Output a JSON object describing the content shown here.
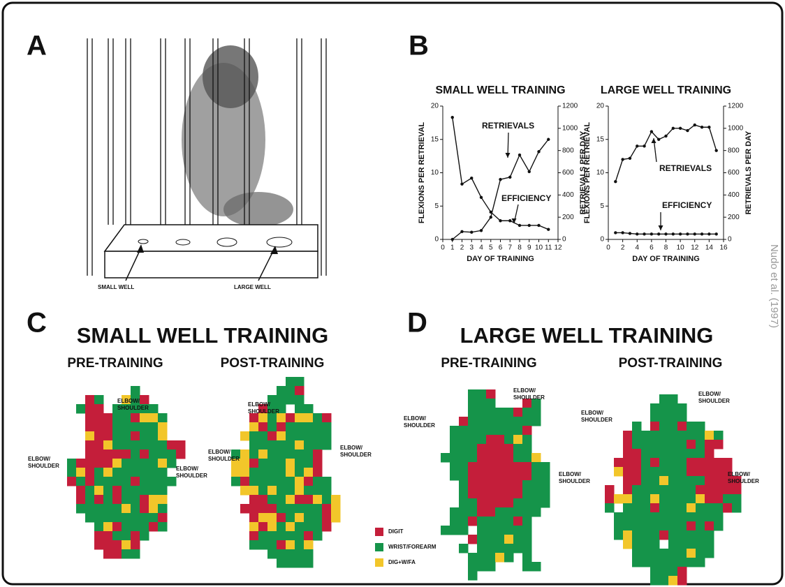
{
  "panel_labels": [
    "A",
    "B",
    "C",
    "D"
  ],
  "illustration": {
    "labels": [
      "SMALL WELL",
      "LARGE WELL"
    ]
  },
  "chart_data": [
    {
      "type": "line",
      "title": "SMALL WELL TRAINING",
      "x": [
        1,
        2,
        3,
        4,
        5,
        6,
        7,
        8,
        9,
        10,
        11
      ],
      "xlim": [
        0,
        12
      ],
      "xticks": [
        0,
        1,
        2,
        3,
        4,
        5,
        6,
        7,
        8,
        9,
        10,
        11,
        12
      ],
      "ylim": [
        0,
        20
      ],
      "yticks": [
        0,
        5,
        10,
        15,
        20
      ],
      "y2lim": [
        0,
        1200
      ],
      "y2ticks": [
        0,
        200,
        400,
        600,
        800,
        1000,
        1200
      ],
      "xlabel": "DAY OF TRAINING",
      "ylabel": "FLEXIONS PER RETRIEVAL",
      "y2label": "RETRIEVALS PER DAY",
      "series": [
        {
          "name": "EFFICIENCY",
          "color": "#111111",
          "values": [
            18.3,
            8.3,
            9.2,
            6.3,
            4.1,
            2.8,
            2.8,
            2.1,
            2.1,
            2.1,
            1.5
          ]
        },
        {
          "name": "RETRIEVALS",
          "color": "#111111",
          "axis": "y2",
          "values": [
            0,
            70,
            65,
            80,
            200,
            540,
            560,
            760,
            610,
            790,
            900
          ]
        }
      ]
    },
    {
      "type": "line",
      "title": "LARGE WELL TRAINING",
      "x": [
        1,
        2,
        3,
        4,
        5,
        6,
        7,
        8,
        9,
        10,
        11,
        12,
        13,
        14,
        15
      ],
      "xlim": [
        0,
        16
      ],
      "xticks": [
        0,
        2,
        4,
        6,
        8,
        10,
        12,
        14,
        16
      ],
      "ylim": [
        0,
        20
      ],
      "yticks": [
        0,
        5,
        10,
        15,
        20
      ],
      "y2lim": [
        0,
        1200
      ],
      "y2ticks": [
        0,
        200,
        400,
        600,
        800,
        1000,
        1200
      ],
      "xlabel": "DAY OF TRAINING",
      "ylabel": "FLEXIONS PER RETRIEVAL",
      "y2label": "RETRIEVALS PER DAY",
      "series": [
        {
          "name": "EFFICIENCY",
          "color": "#111111",
          "values": [
            1,
            1,
            0.9,
            0.8,
            0.8,
            0.8,
            0.8,
            0.8,
            0.8,
            0.8,
            0.8,
            0.8,
            0.8,
            0.8,
            0.8
          ]
        },
        {
          "name": "RETRIEVALS",
          "color": "#111111",
          "axis": "y2",
          "values": [
            520,
            720,
            730,
            840,
            840,
            970,
            900,
            930,
            1000,
            1000,
            980,
            1030,
            1010,
            1010,
            800
          ]
        }
      ]
    }
  ],
  "maps": [
    {
      "title": "SMALL WELL TRAINING",
      "panels": [
        {
          "title": "PRE-TRAINING",
          "labels": [
            "ELBOW/ SHOULDER",
            "ELBOW/ SHOULDER",
            "ELBOW/ SHOULDER"
          ]
        },
        {
          "title": "POST-TRAINING",
          "labels": [
            "ELBOW/ SHOULDER",
            "ELBOW/ SHOULDER",
            "ELBOW/ SHOULDER"
          ]
        }
      ]
    },
    {
      "title": "LARGE WELL TRAINING",
      "panels": [
        {
          "title": "PRE-TRAINING",
          "labels": [
            "ELBOW/ SHOULDER",
            "ELBOW/ SHOULDER",
            "ELBOW/ SHOULDER"
          ]
        },
        {
          "title": "POST-TRAINING",
          "labels": [
            "ELBOW/ SHOULDER",
            "ELBOW/ SHOULDER",
            "ELBOW/ SHOULDER"
          ]
        }
      ]
    }
  ],
  "legend": [
    {
      "label": "DIGIT",
      "color": "#c41e3a"
    },
    {
      "label": "WRIST/FOREARM",
      "color": "#15944a"
    },
    {
      "label": "DIG+W/FA",
      "color": "#f2c62a"
    }
  ],
  "credit": "Nudo et al. (1997)"
}
